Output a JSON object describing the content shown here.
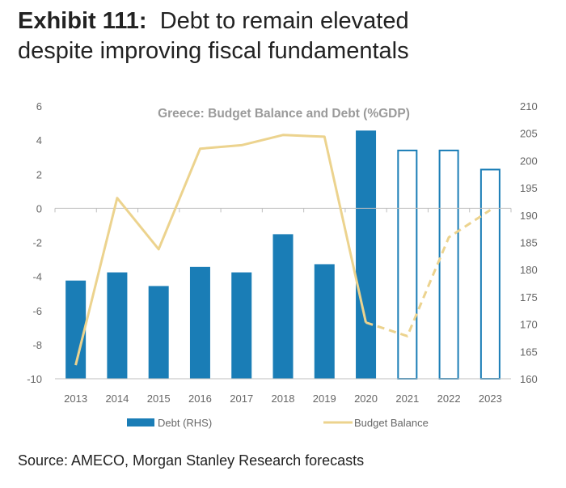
{
  "header": {
    "exhibit_label": "Exhibit 111:",
    "title_line1": "Debt to remain elevated",
    "title_line2": "despite improving fiscal fundamentals"
  },
  "footer": {
    "source": "Source: AMECO, Morgan Stanley Research forecasts"
  },
  "chart_data": {
    "type": "bar",
    "title": "Greece: Budget Balance and Debt (%GDP)",
    "categories": [
      "2013",
      "2014",
      "2015",
      "2016",
      "2017",
      "2018",
      "2019",
      "2020",
      "2021",
      "2022",
      "2023"
    ],
    "forecast_from": "2021",
    "series": [
      {
        "name": "Debt (RHS)",
        "kind": "bar",
        "axis": "right",
        "color": "#1a7db6",
        "values": [
          178,
          179.5,
          177,
          180.5,
          179.5,
          186.5,
          181,
          205.5,
          202,
          202,
          198.5
        ]
      },
      {
        "name": "Budget Balance",
        "kind": "line",
        "axis": "left",
        "color": "#ecd38e",
        "values": [
          -9.2,
          0.6,
          -2.4,
          3.5,
          3.7,
          4.3,
          4.2,
          -6.7,
          -7.5,
          -1.7,
          -0.1
        ]
      }
    ],
    "y_left": {
      "ylim": [
        -10,
        6
      ],
      "ticks": [
        -10,
        -8,
        -6,
        -4,
        -2,
        0,
        2,
        4,
        6
      ]
    },
    "y_right": {
      "ylim": [
        160,
        210
      ],
      "ticks": [
        160,
        165,
        170,
        175,
        180,
        185,
        190,
        195,
        200,
        205,
        210
      ]
    },
    "legend_position": "bottom",
    "grid": false
  }
}
